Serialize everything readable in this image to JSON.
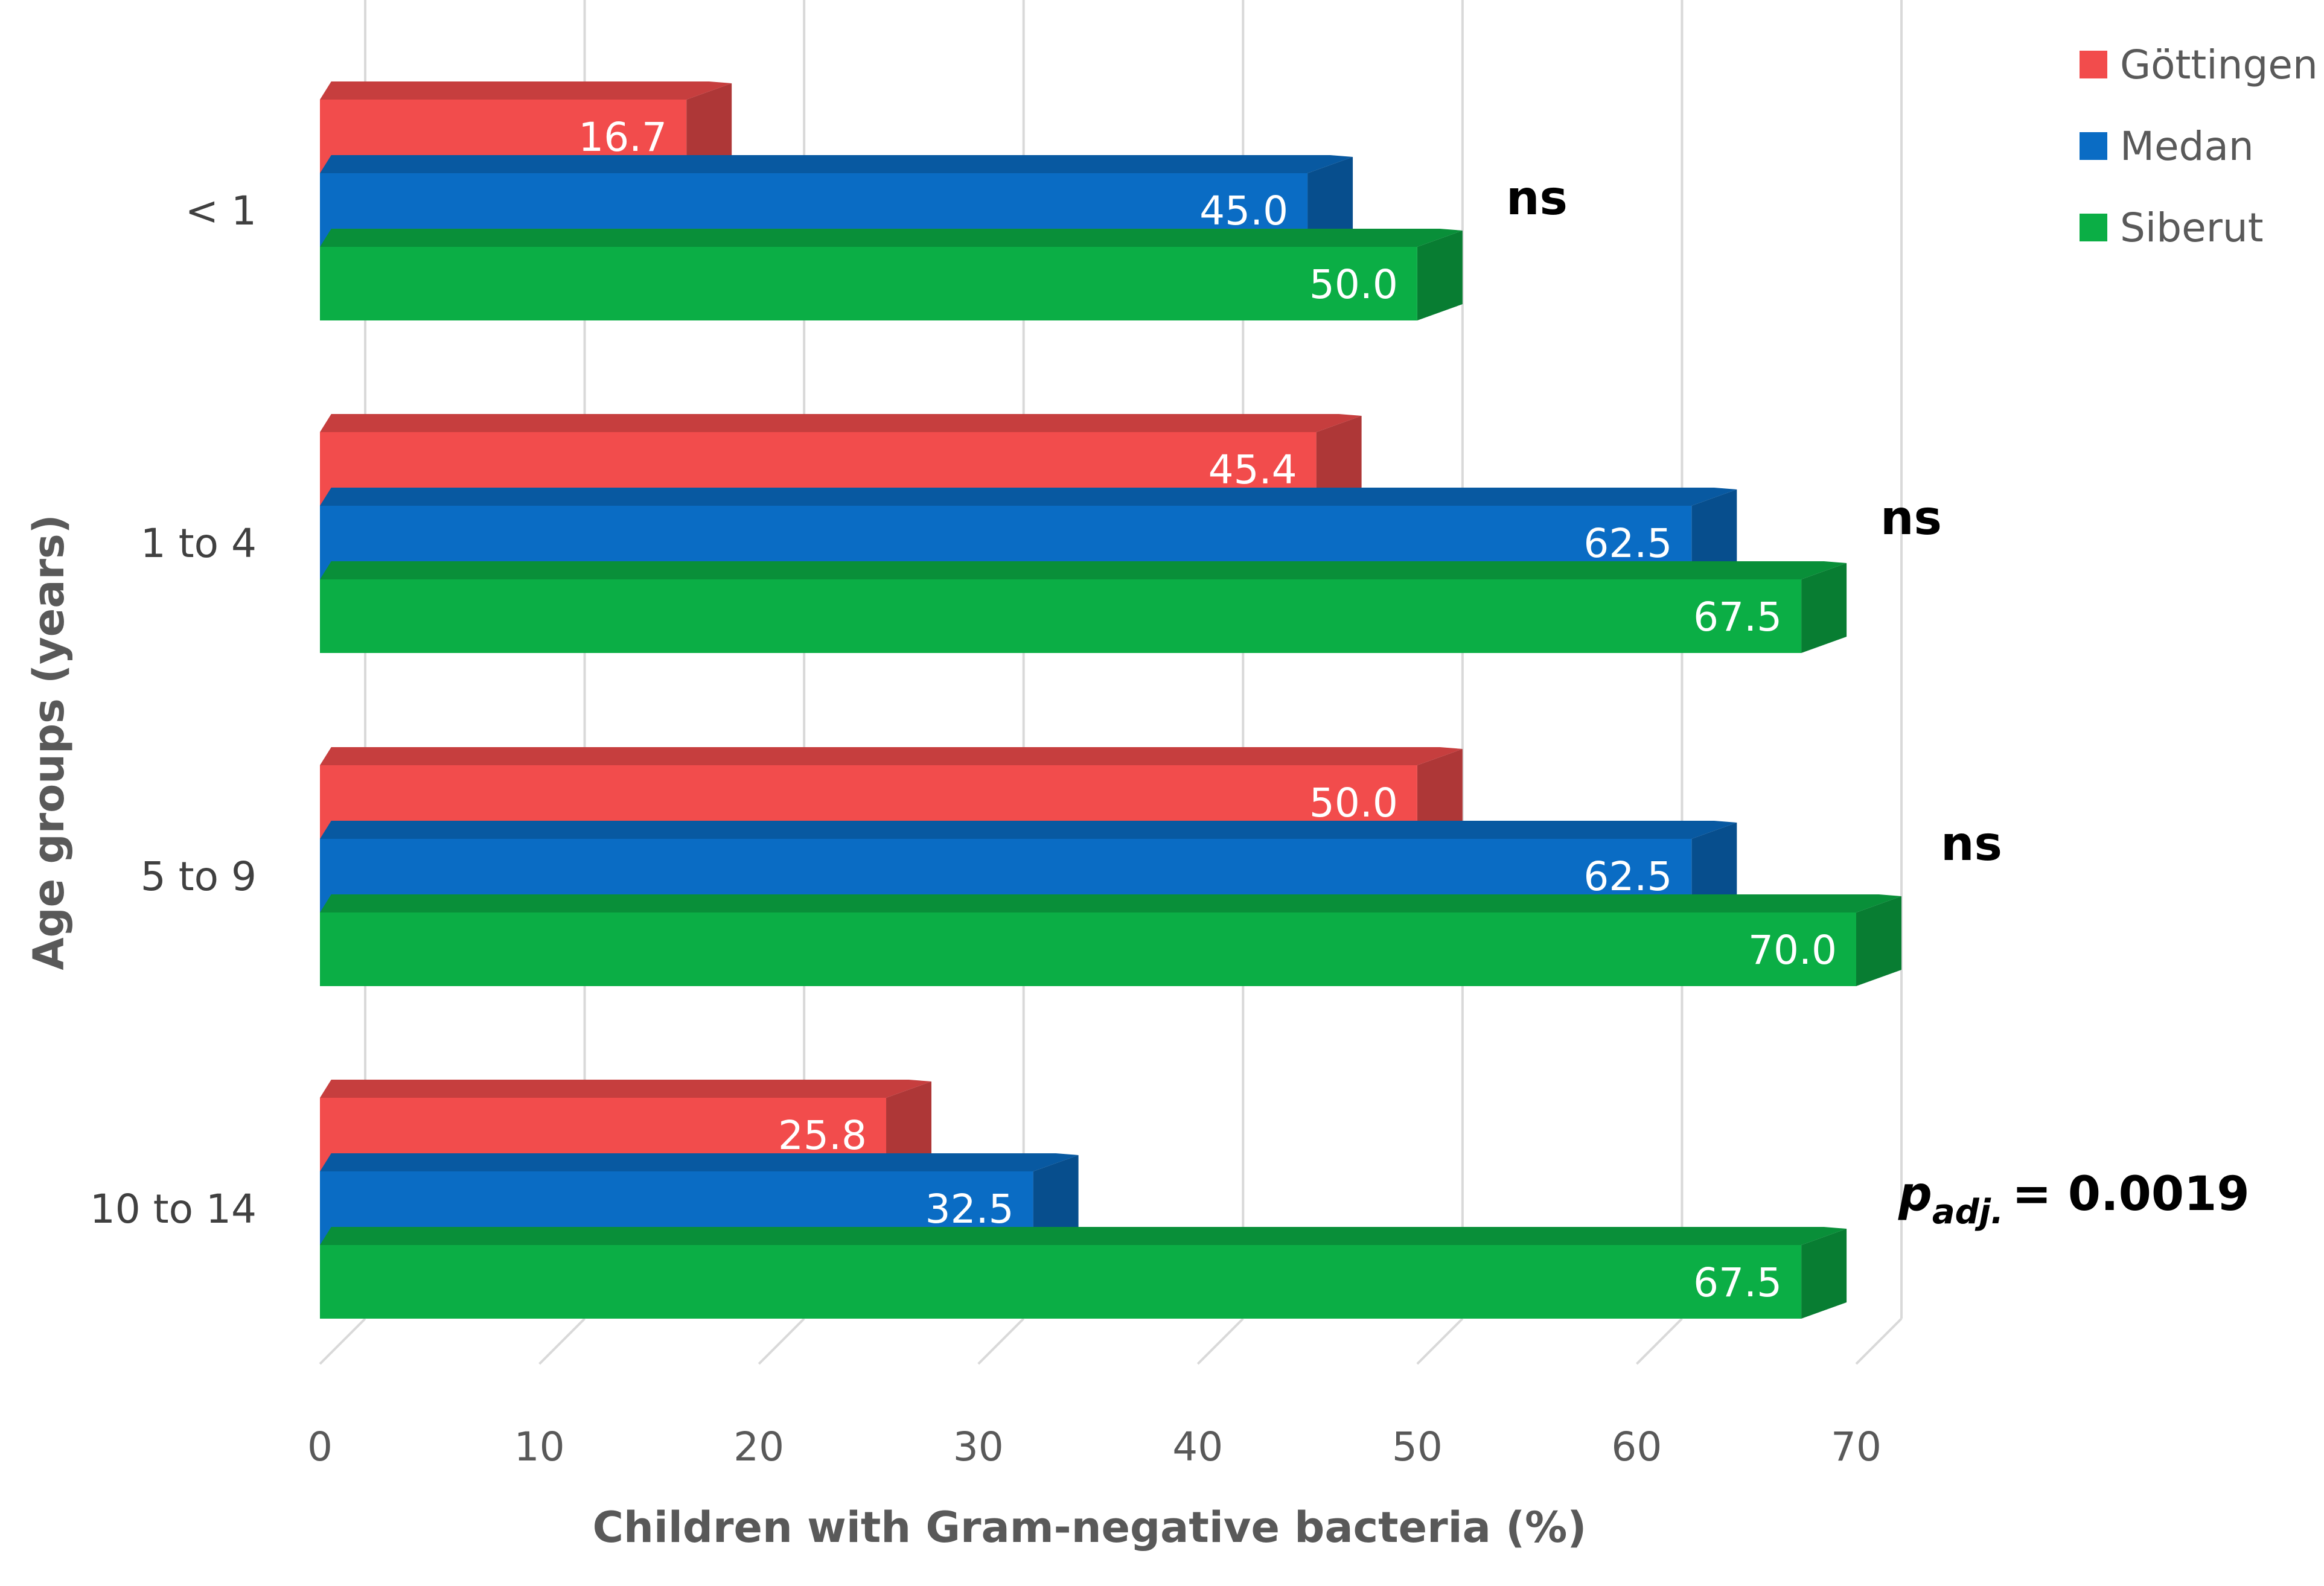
{
  "chart_data": {
    "type": "bar",
    "orientation": "horizontal",
    "style": "3d",
    "title": "",
    "xlabel": "Children with Gram-negative bacteria (%)",
    "ylabel": "Age groups (years)",
    "xlim": [
      0,
      70
    ],
    "xticks": [
      "0",
      "10",
      "20",
      "30",
      "40",
      "50",
      "60",
      "70"
    ],
    "grid": true,
    "legend_position": "top-right",
    "categories": [
      "< 1",
      "1 to 4",
      "5 to 9",
      "10 to 14"
    ],
    "series": [
      {
        "name": "Göttingen",
        "color": "#f24c4c",
        "values": [
          16.7,
          45.4,
          50.0,
          25.8
        ],
        "labels": [
          "16.7",
          "45.4",
          "50.0",
          "25.8"
        ]
      },
      {
        "name": "Medan",
        "color": "#0a6cc4",
        "values": [
          45.0,
          62.5,
          62.5,
          32.5
        ],
        "labels": [
          "45.0",
          "62.5",
          "62.5",
          "32.5"
        ]
      },
      {
        "name": "Siberut",
        "color": "#0bae45",
        "values": [
          50.0,
          67.5,
          70.0,
          67.5
        ],
        "labels": [
          "50.0",
          "67.5",
          "70.0",
          "67.5"
        ]
      }
    ],
    "significance": [
      {
        "category": "< 1",
        "text": "ns"
      },
      {
        "category": "1 to 4",
        "text": "ns"
      },
      {
        "category": "5 to 9",
        "text": "ns"
      },
      {
        "category": "10 to 14",
        "text": "= 0.0019",
        "prefix": "p",
        "subscript": "adj."
      }
    ]
  }
}
